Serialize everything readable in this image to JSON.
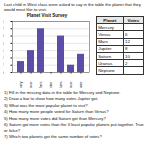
{
  "intro": "Last child in West class were asked to say in the table the planet that they would most like to visit.",
  "chart_data": {
    "type": "bar",
    "title": "Planet Visit Survey",
    "categories": [
      "Mercury",
      "Venus",
      "Mars",
      "Jupiter",
      "Saturn",
      "Uranus",
      "Neptune"
    ],
    "values": [
      3,
      6,
      12,
      null,
      10,
      2,
      5
    ],
    "color": "#5b4ea8",
    "ylim": [
      0,
      14
    ],
    "yticks": [
      0,
      2,
      4,
      6,
      8,
      10,
      12,
      14
    ],
    "grid": true
  },
  "table": {
    "header": [
      "Planet",
      "Votes"
    ],
    "rows": [
      [
        "Mercury",
        null
      ],
      [
        "Venus",
        6
      ],
      [
        "Mars",
        12
      ],
      [
        "Jupiter",
        8
      ],
      [
        "Saturn",
        10
      ],
      [
        "Uranus",
        2
      ],
      [
        "Neptune",
        null
      ]
    ]
  },
  "questions": [
    "1) Fill in the missing data in the table for Mercury and Neptune.",
    "2) Draw a bar to show how many votes Jupiter got.",
    "3) What was the most popular planet to visit?",
    "4) How many more people voted for Saturn than Venus?",
    "5) How many more votes did Saturn get than Mercury?",
    "6) Saturn got more votes than the 3 least popular planets put together. True or false?",
    "7) Which two planets got the same number of votes?"
  ]
}
